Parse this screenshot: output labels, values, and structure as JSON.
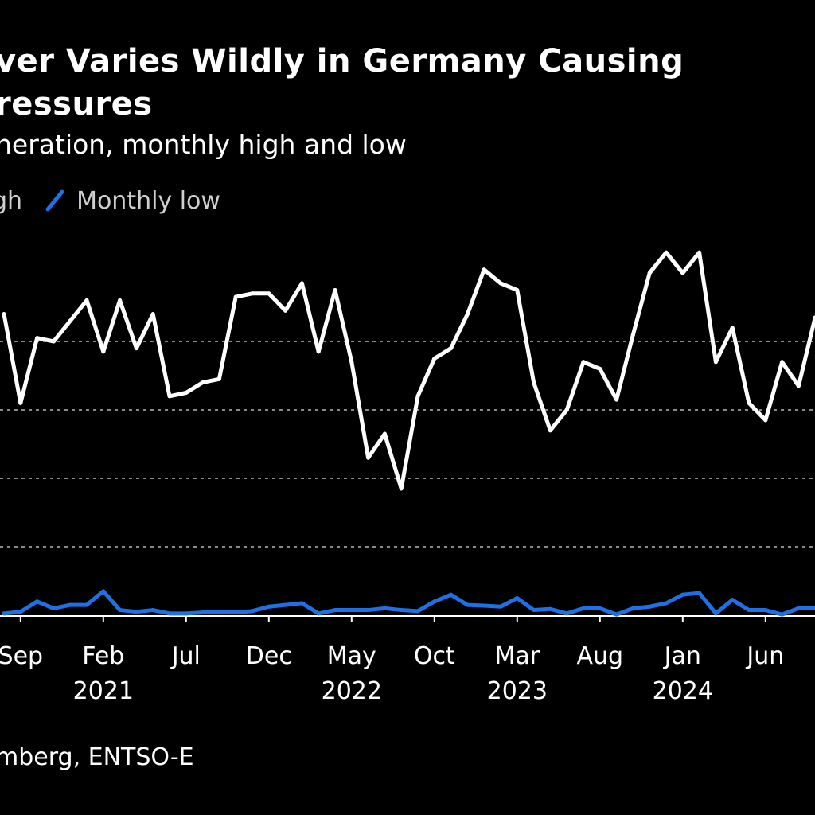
{
  "header": {
    "title_line1": "ver Varies Wildly in Germany Causing",
    "title_line2": "ressures",
    "subtitle": "neration, monthly high and low"
  },
  "legend": {
    "high_label": "gh",
    "low_label": "Monthly low",
    "high_color": "#ffffff",
    "low_color": "#1f6fe5"
  },
  "source": "mberg, ENTSO-E",
  "chart_data": {
    "type": "line",
    "title": "ver Varies Wildly in Germany Causing ressures",
    "subtitle": "neration, monthly high and low",
    "xlabel": "",
    "ylabel": "",
    "grid": true,
    "legend_position": "top-left",
    "ylim": [
      0,
      100
    ],
    "gridlines": [
      20,
      40,
      60,
      80
    ],
    "x_ticks": [
      {
        "index": 1,
        "label": "Sep",
        "year": ""
      },
      {
        "index": 6,
        "label": "Feb",
        "year": "2021"
      },
      {
        "index": 11,
        "label": "Jul",
        "year": ""
      },
      {
        "index": 16,
        "label": "Dec",
        "year": ""
      },
      {
        "index": 21,
        "label": "May",
        "year": "2022"
      },
      {
        "index": 26,
        "label": "Oct",
        "year": ""
      },
      {
        "index": 31,
        "label": "Mar",
        "year": "2023"
      },
      {
        "index": 36,
        "label": "Aug",
        "year": ""
      },
      {
        "index": 41,
        "label": "Jan",
        "year": "2024"
      },
      {
        "index": 46,
        "label": "Jun",
        "year": ""
      }
    ],
    "x": [
      0,
      1,
      2,
      3,
      4,
      5,
      6,
      7,
      8,
      9,
      10,
      11,
      12,
      13,
      14,
      15,
      16,
      17,
      18,
      19,
      20,
      21,
      22,
      23,
      24,
      25,
      26,
      27,
      28,
      29,
      30,
      31,
      32,
      33,
      34,
      35,
      36,
      37,
      38,
      39,
      40,
      41,
      42,
      43,
      44,
      45,
      46,
      47,
      48,
      49
    ],
    "series": [
      {
        "name": "Monthly high",
        "color": "#ffffff",
        "values": [
          88,
          62,
          81,
          80,
          86,
          92,
          77,
          92,
          78,
          88,
          64,
          65,
          68,
          69,
          93,
          94,
          94,
          89,
          97,
          77,
          95,
          74,
          46,
          53,
          37,
          64,
          75,
          78,
          88,
          101,
          97,
          95,
          68,
          54,
          60,
          74,
          72,
          63,
          82,
          100,
          106,
          100,
          106,
          74,
          84,
          62,
          57,
          74,
          67,
          87
        ]
      },
      {
        "name": "Monthly low",
        "color": "#1f6fe5",
        "values": [
          0.5,
          1,
          4,
          2,
          3,
          3,
          7,
          1.5,
          1,
          1.5,
          0.5,
          0.5,
          0.8,
          0.8,
          0.8,
          1.2,
          2.5,
          3,
          3.5,
          0.5,
          1.5,
          1.5,
          1.5,
          2,
          1.5,
          1.2,
          4,
          6,
          3,
          2.8,
          2.5,
          5,
          1.5,
          1.8,
          0.5,
          2,
          2,
          0.2,
          2,
          2.5,
          3.5,
          6,
          6.5,
          0.5,
          4.5,
          1.5,
          1.5,
          0.2,
          2,
          2
        ]
      }
    ]
  }
}
